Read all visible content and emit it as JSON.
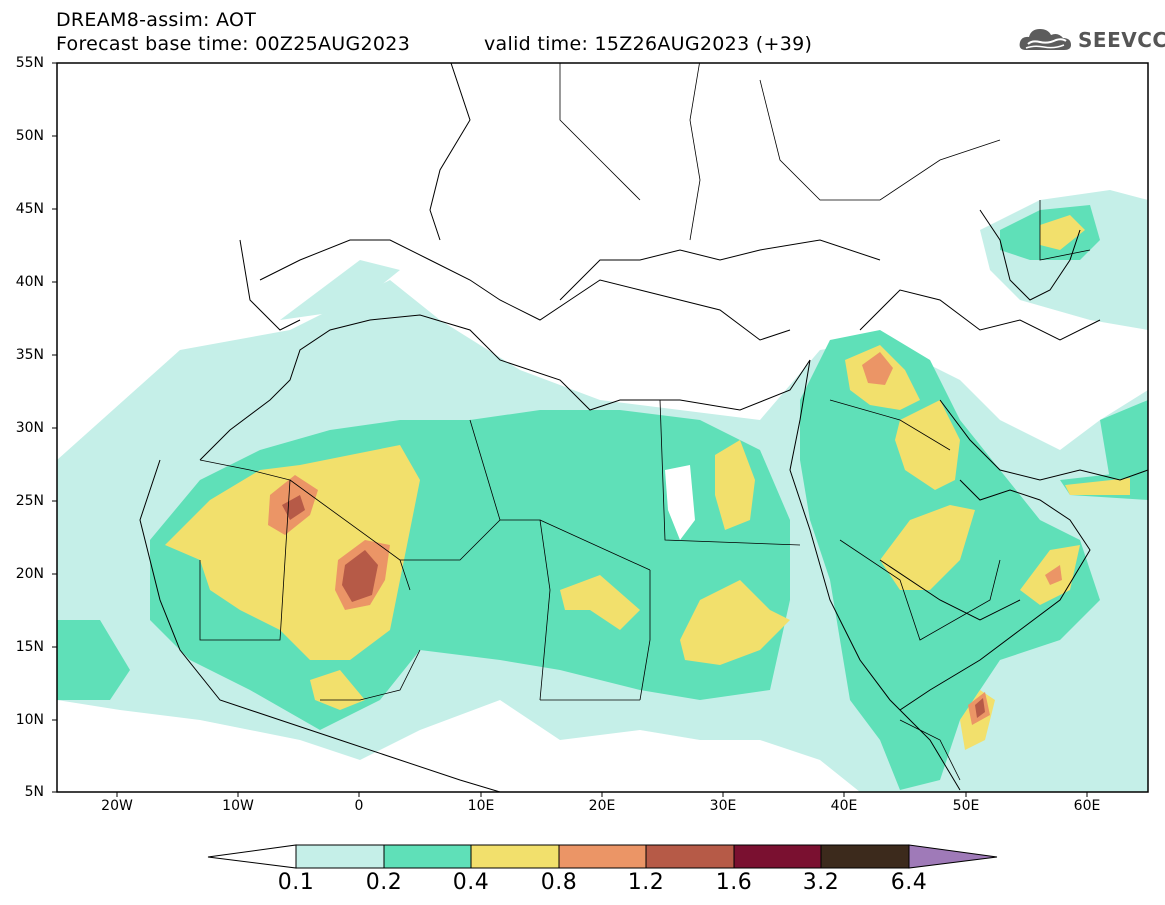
{
  "header": {
    "title": "DREAM8-assim: AOT",
    "base_time": "Forecast base time: 00Z25AUG2023",
    "valid_time": "valid time: 15Z26AUG2023 (+39)"
  },
  "logo": {
    "text": "SEEVCCC",
    "icon": "cloud-icon"
  },
  "map": {
    "lat_labels": [
      "55N",
      "50N",
      "45N",
      "40N",
      "35N",
      "30N",
      "25N",
      "20N",
      "15N",
      "10N",
      "5N"
    ],
    "lon_labels": [
      "20W",
      "10W",
      "0",
      "10E",
      "20E",
      "30E",
      "40E",
      "50E",
      "60E"
    ],
    "lat_range": [
      5,
      55
    ],
    "lon_range": [
      -25,
      65
    ]
  },
  "colorbar": {
    "labels": [
      "0.1",
      "0.2",
      "0.4",
      "0.8",
      "1.2",
      "1.6",
      "3.2",
      "6.4"
    ],
    "colors": [
      "#c5efe8",
      "#5fe0b8",
      "#f2e06c",
      "#eb9566",
      "#b65a47",
      "#7a1030",
      "#3c2a1c",
      "#9f7ab8"
    ]
  }
}
